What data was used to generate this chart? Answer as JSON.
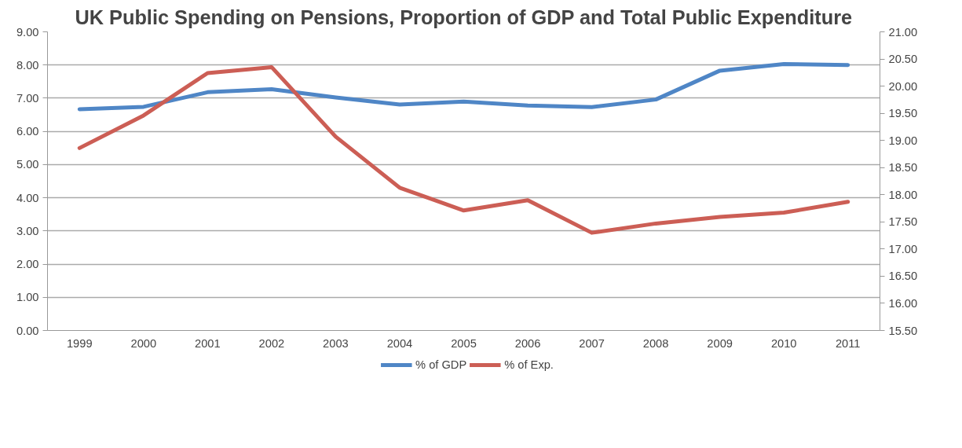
{
  "chart_data": {
    "type": "line",
    "title": "UK Public Spending on Pensions, Proportion of GDP and Total Public Expenditure",
    "categories": [
      "1999",
      "2000",
      "2001",
      "2002",
      "2003",
      "2004",
      "2005",
      "2006",
      "2007",
      "2008",
      "2009",
      "2010",
      "2011"
    ],
    "series": [
      {
        "name": "% of GDP",
        "color": "#4f86c6",
        "values": [
          6.67,
          6.74,
          7.18,
          7.27,
          7.02,
          6.81,
          6.9,
          6.78,
          6.73,
          6.96,
          7.83,
          8.03,
          8.0
        ]
      },
      {
        "name": "% of Exp.",
        "color": "#cc5e55",
        "axis": "y2",
        "values": [
          18.86,
          19.46,
          20.24,
          20.35,
          19.07,
          18.13,
          17.71,
          17.9,
          17.3,
          17.47,
          17.59,
          17.67,
          17.87
        ]
      }
    ],
    "ylim": [
      0,
      9
    ],
    "yticks": [
      {
        "value": 0,
        "label": "0.00"
      },
      {
        "value": 1,
        "label": "1.00"
      },
      {
        "value": 2,
        "label": "2.00"
      },
      {
        "value": 3,
        "label": "3.00"
      },
      {
        "value": 4,
        "label": "4.00"
      },
      {
        "value": 5,
        "label": "5.00"
      },
      {
        "value": 6,
        "label": "6.00"
      },
      {
        "value": 7,
        "label": "7.00"
      },
      {
        "value": 8,
        "label": "8.00"
      },
      {
        "value": 9,
        "label": "9.00"
      }
    ],
    "y2lim": [
      15.5,
      21
    ],
    "y2ticks": [
      {
        "value": 15.5,
        "label": "15.50"
      },
      {
        "value": 16,
        "label": "16.00"
      },
      {
        "value": 16.5,
        "label": "16.50"
      },
      {
        "value": 17,
        "label": "17.00"
      },
      {
        "value": 17.5,
        "label": "17.50"
      },
      {
        "value": 18,
        "label": "18.00"
      },
      {
        "value": 18.5,
        "label": "18.50"
      },
      {
        "value": 19,
        "label": "19.00"
      },
      {
        "value": 19.5,
        "label": "19.50"
      },
      {
        "value": 20,
        "label": "20.00"
      },
      {
        "value": 20.5,
        "label": "20.50"
      },
      {
        "value": 21,
        "label": "21.00"
      }
    ],
    "grid": "y",
    "legend": "bottom",
    "line_style": "solid",
    "marker": "none"
  }
}
